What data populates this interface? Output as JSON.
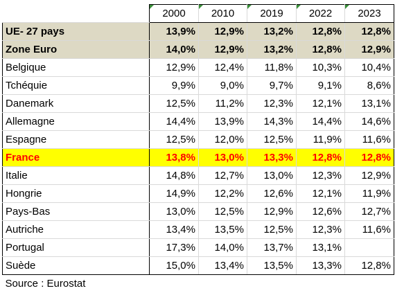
{
  "header": {
    "years": [
      "2000",
      "2010",
      "2019",
      "2022",
      "2023"
    ]
  },
  "rows": [
    {
      "label": "UE- 27 pays",
      "values": [
        "13,9%",
        "12,9%",
        "13,2%",
        "12,8%",
        "12,8%"
      ],
      "style": "agg"
    },
    {
      "label": "Zone Euro",
      "values": [
        "14,0%",
        "12,9%",
        "13,2%",
        "12,8%",
        "12,9%"
      ],
      "style": "agg"
    },
    {
      "label": "Belgique",
      "values": [
        "12,9%",
        "12,4%",
        "11,8%",
        "10,3%",
        "10,4%"
      ],
      "style": "normal"
    },
    {
      "label": "Tchéquie",
      "values": [
        "9,9%",
        "9,0%",
        "9,7%",
        "9,1%",
        "8,6%"
      ],
      "style": "normal"
    },
    {
      "label": "Danemark",
      "values": [
        "12,5%",
        "11,2%",
        "12,3%",
        "12,1%",
        "13,1%"
      ],
      "style": "normal"
    },
    {
      "label": "Allemagne",
      "values": [
        "14,4%",
        "13,9%",
        "14,3%",
        "14,4%",
        "14,6%"
      ],
      "style": "normal"
    },
    {
      "label": "Espagne",
      "values": [
        "12,5%",
        "12,0%",
        "12,5%",
        "11,9%",
        "11,6%"
      ],
      "style": "normal"
    },
    {
      "label": "France",
      "values": [
        "13,8%",
        "13,0%",
        "13,3%",
        "12,8%",
        "12,8%"
      ],
      "style": "highlight"
    },
    {
      "label": "Italie",
      "values": [
        "14,8%",
        "12,7%",
        "13,0%",
        "12,3%",
        "12,9%"
      ],
      "style": "normal"
    },
    {
      "label": "Hongrie",
      "values": [
        "14,9%",
        "12,2%",
        "12,6%",
        "12,1%",
        "11,9%"
      ],
      "style": "normal"
    },
    {
      "label": "Pays-Bas",
      "values": [
        "13,0%",
        "12,5%",
        "12,9%",
        "12,6%",
        "12,7%"
      ],
      "style": "normal"
    },
    {
      "label": "Autriche",
      "values": [
        "13,4%",
        "13,5%",
        "12,5%",
        "12,3%",
        "11,6%"
      ],
      "style": "normal"
    },
    {
      "label": "Portugal",
      "values": [
        "17,3%",
        "14,0%",
        "13,7%",
        "13,1%",
        ""
      ],
      "style": "normal"
    },
    {
      "label": "Suède",
      "values": [
        "15,0%",
        "13,4%",
        "13,5%",
        "13,3%",
        "12,8%"
      ],
      "style": "normal"
    }
  ],
  "source": "Source : Eurostat",
  "colors": {
    "aggregate_bg": "#ddd9c4",
    "highlight_bg": "#ffff00",
    "highlight_text": "#ff0000",
    "corner_marker": "#3a8f3a"
  }
}
